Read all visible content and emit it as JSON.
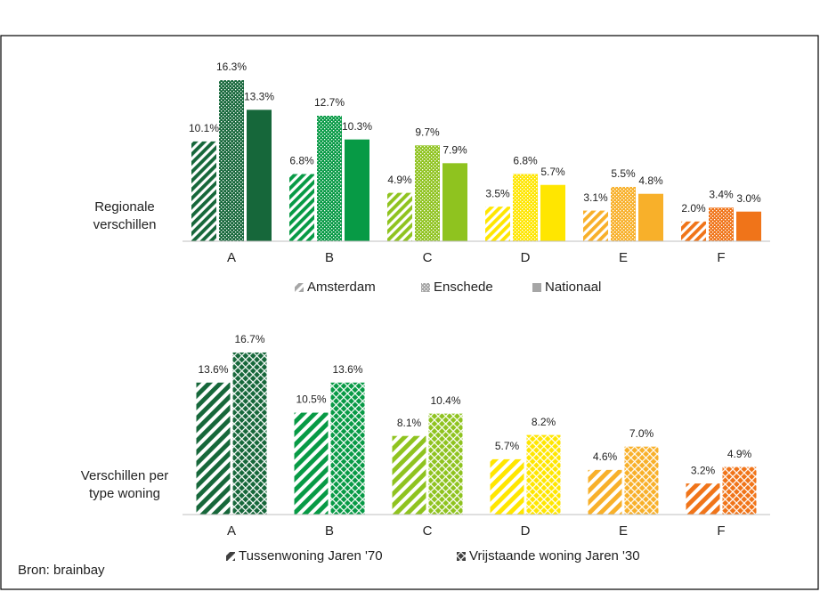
{
  "chart_data": [
    {
      "type": "bar",
      "label_lines": [
        "Regionale",
        "verschillen"
      ],
      "categories": [
        "A",
        "B",
        "C",
        "D",
        "E",
        "F"
      ],
      "category_colors": [
        "#16673a",
        "#079a45",
        "#8fc31f",
        "#ffe600",
        "#f8b02a",
        "#f07419"
      ],
      "series": [
        {
          "name": "Amsterdam",
          "color": "#a6a6a6",
          "pattern": "diagonal",
          "values": [
            10.1,
            6.8,
            4.9,
            3.5,
            3.1,
            2.0
          ],
          "value_labels": [
            "10.1%",
            "6.8%",
            "4.9%",
            "3.5%",
            "3.1%",
            "2.0%"
          ]
        },
        {
          "name": "Enschede",
          "color": "#a6a6a6",
          "pattern": "checker",
          "values": [
            16.3,
            12.7,
            9.7,
            6.8,
            5.5,
            3.4
          ],
          "value_labels": [
            "16.3%",
            "12.7%",
            "9.7%",
            "6.8%",
            "5.5%",
            "3.4%"
          ]
        },
        {
          "name": "Nationaal",
          "color": "#a6a6a6",
          "pattern": "solid",
          "values": [
            13.3,
            10.3,
            7.9,
            5.7,
            4.8,
            3.0
          ],
          "value_labels": [
            "13.3%",
            "10.3%",
            "7.9%",
            "5.7%",
            "4.8%",
            "3.0%"
          ]
        }
      ]
    },
    {
      "type": "bar",
      "label_lines": [
        "Verschillen per",
        "type woning"
      ],
      "categories": [
        "A",
        "B",
        "C",
        "D",
        "E",
        "F"
      ],
      "category_colors": [
        "#16673a",
        "#079a45",
        "#8fc31f",
        "#ffe600",
        "#f8b02a",
        "#f07419"
      ],
      "series": [
        {
          "name": "Tussenwoning Jaren '70",
          "color": "#404040",
          "pattern": "diagonal-wide",
          "values": [
            13.6,
            10.5,
            8.1,
            5.7,
            4.6,
            3.2
          ],
          "value_labels": [
            "13.6%",
            "10.5%",
            "8.1%",
            "5.7%",
            "4.6%",
            "3.2%"
          ]
        },
        {
          "name": "Vrijstaande woning Jaren '30",
          "color": "#404040",
          "pattern": "diamond",
          "values": [
            16.7,
            13.6,
            10.4,
            8.2,
            7.0,
            4.9
          ],
          "value_labels": [
            "16.7%",
            "13.6%",
            "10.4%",
            "8.2%",
            "7.0%",
            "4.9%"
          ]
        }
      ]
    }
  ],
  "source": "Bron: brainbay"
}
